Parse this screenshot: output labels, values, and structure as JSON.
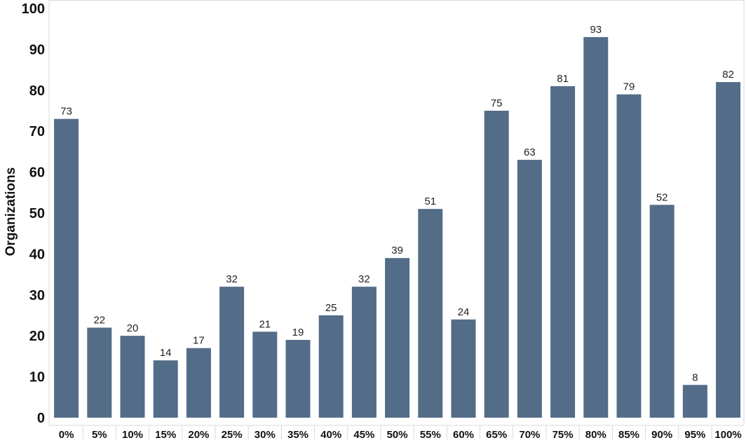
{
  "chart_data": {
    "type": "bar",
    "categories": [
      "0%",
      "5%",
      "10%",
      "15%",
      "20%",
      "25%",
      "30%",
      "35%",
      "40%",
      "45%",
      "50%",
      "55%",
      "60%",
      "65%",
      "70%",
      "75%",
      "80%",
      "85%",
      "90%",
      "95%",
      "100%"
    ],
    "values": [
      73,
      22,
      20,
      14,
      17,
      32,
      21,
      19,
      25,
      32,
      39,
      51,
      24,
      75,
      63,
      81,
      93,
      79,
      52,
      8,
      82
    ],
    "title": "",
    "xlabel": "",
    "ylabel": "Organizations",
    "ylim": [
      0,
      100
    ],
    "yticks": [
      0,
      10,
      20,
      30,
      40,
      50,
      60,
      70,
      80,
      90,
      100
    ],
    "grid": false,
    "legend": "none",
    "bar_color": "#536c88",
    "axis_color": "#d9d9d9"
  }
}
